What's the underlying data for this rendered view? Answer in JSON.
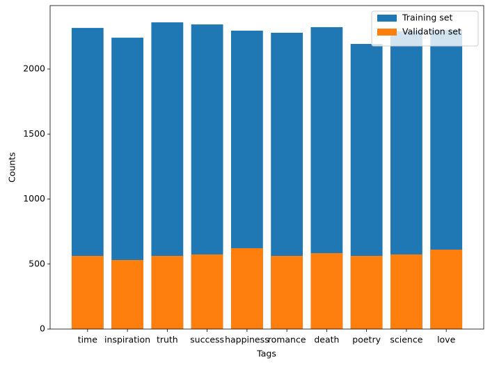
{
  "chart_data": {
    "type": "bar",
    "overlap": true,
    "x_label": "Tags",
    "y_label": "Counts",
    "categories": [
      "time",
      "inspiration",
      "truth",
      "success",
      "happiness",
      "romance",
      "death",
      "poetry",
      "science",
      "love"
    ],
    "series": [
      {
        "name": "Training set",
        "color": "#1f77b4",
        "values": [
          2316,
          2241,
          2359,
          2343,
          2295,
          2279,
          2322,
          2193,
          2290,
          2300
        ]
      },
      {
        "name": "Validation set",
        "color": "#ff7f0e",
        "values": [
          563,
          531,
          563,
          574,
          622,
          563,
          584,
          563,
          574,
          611
        ]
      }
    ],
    "ylim": [
      0,
      2488
    ],
    "yticks": [
      0,
      500,
      1000,
      1500,
      2000
    ],
    "legend": "upper right"
  }
}
